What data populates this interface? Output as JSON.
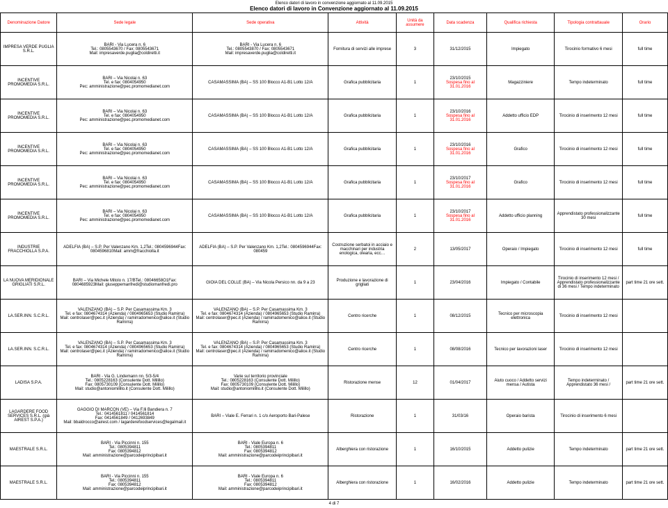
{
  "title1": "Elenco datori di lavoro in convenzione aggiornato al 11.09.2015",
  "title2": "Elenco datori di lavoro in Convenzione aggiornato al 11.09.2015",
  "headers": [
    "Denominazione Datore",
    "Sede legale",
    "Sede operativa",
    "Attività",
    "Unità da assumere",
    "Data scadenza",
    "Qualifica richiesta",
    "Tipologia contrattauale",
    "Orario"
  ],
  "footer": "4 di 7",
  "rows": [
    {
      "c": [
        "IMPRESA VERDE PUGLIA S.R.L.",
        "BARI - Via Lucera n. 6\nTel.: 0805543670 / Fax: 0805543671\nMail: impresaverde.puglia@coldiretti.it",
        "BARI - Via Lucera n. 6\nTel.: 0805543870 / Fax: 0805543671\nMail: impresaverde.puglia@coldiretti.it",
        "Fornitura di servizi alle imprese",
        "3",
        "31/12/2015",
        "Impiegato",
        "Tirocinio formativo 6 mesi",
        "full time"
      ]
    },
    {
      "c": [
        "INCENTIVE PROMOMEDIA S.R.L.",
        "BARI – Via Nicolai n. 63\nTel. e fax: 0804054950\nPec: amministrazione@pec.promomedianet.com",
        "CASAMASSIMA (BA) – SS 100 Blocco A1-B1 Lotto 12/A",
        "Grafica pubblicitaria",
        "1",
        "23/10/2015\n<span class=\"red\">Sospesa fino al 31.01.2016</span>",
        "Magazziniere",
        "Tempo indeterminato",
        "full time"
      ]
    },
    {
      "c": [
        "INCENTIVE PROMOMEDIA S.R.L.",
        "BARI – Via Nicolai n. 63\nTel. e fax: 0804054950\nPec: amministrazione@pec.promomedianet.com",
        "CASAMASSIMA (BA) – SS 100 Blocco A1-B1 Lotto 12/A",
        "Grafica pubblicitaria",
        "1",
        "23/10/2016\n<span class=\"red\">Sospesa fino al 31.01.2016</span>",
        "Addetto ufficio EDP",
        "Tirocinio di inserimento 12 mesi",
        "full time"
      ]
    },
    {
      "c": [
        "INCENTIVE PROMOMEDIA S.R.L.",
        "BARI – Via Nicolai n. 63\nTel. e fax: 0804054950\nPec: amministrazione@pec.promomedianet.com",
        "CASAMASSIMA (BA) – SS 100 Blocco A1-B1 Lotto 12/A",
        "Grafica pubblicitaria",
        "1",
        "23/10/2016\n<span class=\"red\">Sospesa fino al 31.01.2016</span>",
        "Grafico",
        "Tirocinio di inserimento 12 mesi",
        "full time"
      ]
    },
    {
      "c": [
        "INCENTIVE PROMOMEDIA S.R.L.",
        "BARI – Via Nicolai n. 63\nTel. e fax: 0804054950\nPec: amministrazione@pec.promomedianet.com",
        "CASAMASSIMA (BA) – SS 100 Blocco A1-B1 Lotto 12/A",
        "Grafica pubblicitaria",
        "1",
        "23/10/2017\n<span class=\"red\">Sospesa fino al 31.01.2016</span>",
        "Grafico",
        "Tirocinio di inserimento 12 mesi",
        "full time"
      ]
    },
    {
      "c": [
        "INCENTIVE PROMOMEDIA S.R.L.",
        "BARI – Via Nicolai n. 63\nTel. e fax: 0804054950\nPec: amministrazione@pec.promomedianet.com",
        "CASAMASSIMA (BA) – SS 100 Blocco A1-B1 Lotto 12/A",
        "Grafica pubblicitaria",
        "1",
        "23/10/2017\n<span class=\"red\">Sospesa fino al 31.01.2016</span>",
        "Addetto ufficio planning",
        "Apprendistato professionalizzante 30 mesi",
        "full time"
      ]
    },
    {
      "c": [
        "INDUSTRIE FRACCHIOLLA S.P.A.",
        "ADELFIA (BA) – S.P. Per Valenzano Km. 1,2Tel.: 0804596944Fax: 0804596810Mail: amm@fracchiolla.it",
        "ADELFIA (BA) – S.P. Per Valenzano Km. 1,2Tel.: 0804596944Fax: 080459",
        "Costruzione serbatoi in acciaio e macchinari per industria enologica, olearia, ecc…",
        "2",
        "13/05/2017",
        "Operaio / Impiegato",
        "Tirocinio di inserimento 12 mesi",
        "full time"
      ]
    },
    {
      "c": [
        "LA NUOVA MERIDIONALE GRIGLIATI S.R.L.",
        "BARI – Via Michele Mitolo n. 17/BTel.: 08046658O1Fax: 0804685923Mail: giuseppemanfredi@studiomanfredi.pro",
        "GIOIA DEL COLLE (BA) – Via Nicola Persico nn. da 9 a 23",
        "Produzione e lavorazione di grigliati",
        "1",
        "23/04/2016",
        "Impiegato / Contabile",
        "Tirocinio di inserimento 12 mesi / Apprendistato professionalizzante di 36 mesi / Tempo indeterminato",
        "part time 21 ore sett."
      ]
    },
    {
      "c": [
        "LA.SER.INN. S.C.R.L.",
        "VALENZANO (BA) – S.P. Per Casamassima Km. 3\nTel. e fax: 0804674314 (Azienda) / 0804965653 (Studio Ramirra)\nMail: centrolaser@pec.it (Azienda) / ramirradomenico@alice.it (Studio Ramirra)",
        "VALENZANO (BA) – S.P. Per Casamassima Km. 3\nTel. e fax: 0804674314 (Azienda) / 0804965653 (Studio Ramirra)\nMail: centrolaser@pec.it (Azienda) / ramirradomenico@alice.it (Studio Ramirra)",
        "Centro ricerche",
        "1",
        "08/12/2015",
        "Tecnico per microscopia elettronica",
        "Tirocinio di inserimento 12 mesi",
        ""
      ]
    },
    {
      "c": [
        "LA.SER.INN. S.C.R.L.",
        "VALENZANO (BA) – S.P. Per Casamassima Km. 3\nTel. e fax: 0804674314 (Azienda) / 0804965653 (Studio Ramirra)\nMail: centrolaser@pec.it (Azienda) / ramirradomenico@alice.it (Studio Ramirra)",
        "VALENZANO (BA) – S.P. Per Casamassima Km. 3\nTel. e fax: 0804674314 (Azienda) / 0804965653 (Studio Ramirra)\nMail: centrolaser@pec.it (Azienda) / ramirradomenico@alice.it (Studio Ramirra)",
        "Centro ricerche",
        "1",
        "08/08/2016",
        "Tecnico per lavorazioni laser",
        "Tirocinio di inserimento 12 mesi",
        ""
      ]
    },
    {
      "c": [
        "LADISA S.P.A.",
        "BARI - Via G. Lindemann nn. 5/3-5/4\nTel.: 0805228163 (Consulente Dott. Milillo)\nFax: 0805730109 (Consulente Dott. Milillo)\nMail: studio@antoniomilillo.it (Consulente Dott. Milillo)",
        "Varie sul territorio provinciale\nTel.: 0805228163 (Consulente Dott. Milillo)\nFax: 0805730109 (Consulente Dott. Milillo)\nMail: studio@antoniomilillo.it (Consulente Dott. Milillo)",
        "Ristorazione mense",
        "12",
        "01/04/2017",
        "Aiuto cuoco / Addetto servizi mensa / Autista",
        "Tempo indeterminato / Apprendistato 36 mesi /",
        "part time 21 ore sett."
      ]
    },
    {
      "c": [
        "LAGARDERE FOOD SERVICES S.R.L. (già AIREST S.P.A.)",
        "GAGGIO DI MARCON (VE) – Via F.lli Bandiera n. 7\nTel.: 0414561811 / 0414561814\nFax: 0414561849 / 0412693849\nMail: bbaldrocco@airest.com / lagarderefoodservices@legalmail.it",
        "BARI – Viale E. Ferrari n. 1 c/o Aeroporto Bari-Palese",
        "Ristorazione",
        "1",
        "31/03/16",
        "Operaio barista",
        "Tirocinio di inserimento 6 mesi",
        ""
      ]
    },
    {
      "c": [
        "MAESTRALE S.R.L.",
        "BARI - Via Piccinni n. 155\nTel.: 0805394811\nFax: 0805394812\nMail: amministrazione@parcodeiprincipibari.it",
        "BARI - Viale Europa n. 6\nTel.: 0805394811\nFax: 0805394812\nMail: amministrazione@parcodeiprincipibari.it",
        "Alberghiera con ristorazione",
        "1",
        "16/10/2015",
        "Addetto pulizie",
        "Tempo indeterminato",
        "part time 21 ore sett."
      ]
    },
    {
      "c": [
        "MAESTRALE S.R.L.",
        "BARI - Via Piccinni n. 155\nTel.: 0805394811\nFax: 0805394812\nMail: amministrazione@parcodeiprincipibari.it",
        "BARI - Viale Europa n. 6\nTel.: 0805394811\nFax: 0805394812\nMail: amministrazione@parcodeiprincipibari.it",
        "Alberghiera con ristorazione",
        "1",
        "16/02/2016",
        "Addetto pulizie",
        "Tempo indeterminato",
        "part time 21 ore sett."
      ]
    }
  ]
}
